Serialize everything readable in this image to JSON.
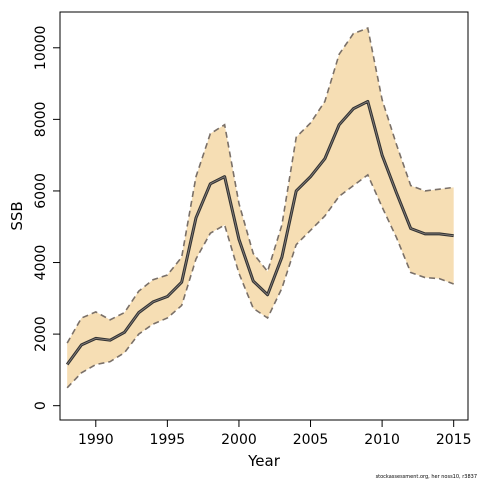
{
  "chart_data": {
    "type": "area",
    "xlabel": "Year",
    "ylabel": "SSB",
    "xlim": [
      1987.5,
      2016.0
    ],
    "ylim": [
      -400,
      11000
    ],
    "xticks": [
      1990,
      1995,
      2000,
      2005,
      2010,
      2015
    ],
    "yticks": [
      0,
      2000,
      4000,
      6000,
      8000,
      10000
    ],
    "grid": false,
    "legend": "none",
    "x": [
      1988,
      1989,
      1990,
      1991,
      1992,
      1993,
      1994,
      1995,
      1996,
      1997,
      1998,
      1999,
      2000,
      2001,
      2002,
      2003,
      2004,
      2005,
      2006,
      2007,
      2008,
      2009,
      2010,
      2011,
      2012,
      2013,
      2014,
      2015
    ],
    "series": [
      {
        "role": "estimate",
        "values": [
          1150,
          1700,
          1880,
          1830,
          2050,
          2600,
          2900,
          3050,
          3450,
          5250,
          6200,
          6400,
          4650,
          3480,
          3100,
          4150,
          6000,
          6400,
          6900,
          7850,
          8300,
          8500,
          7000,
          5950,
          4950,
          4800,
          4800,
          4750
        ]
      },
      {
        "role": "upper",
        "values": [
          1750,
          2450,
          2620,
          2400,
          2600,
          3200,
          3520,
          3650,
          4150,
          6400,
          7600,
          7850,
          5650,
          4250,
          3750,
          5050,
          7500,
          7900,
          8500,
          9820,
          10400,
          10550,
          8550,
          7300,
          6150,
          6000,
          6050,
          6100
        ]
      },
      {
        "role": "lower",
        "values": [
          500,
          920,
          1150,
          1230,
          1480,
          2000,
          2280,
          2450,
          2800,
          4100,
          4820,
          5050,
          3700,
          2720,
          2450,
          3280,
          4500,
          4900,
          5300,
          5850,
          6150,
          6450,
          5550,
          4700,
          3720,
          3580,
          3550,
          3400
        ]
      }
    ],
    "colors": {
      "band": "#f6deb4",
      "line": "#333333",
      "bound": "#7a7068",
      "axis": "#000000"
    },
    "footnote": "stockassessment.org, her noss10, r3837"
  }
}
